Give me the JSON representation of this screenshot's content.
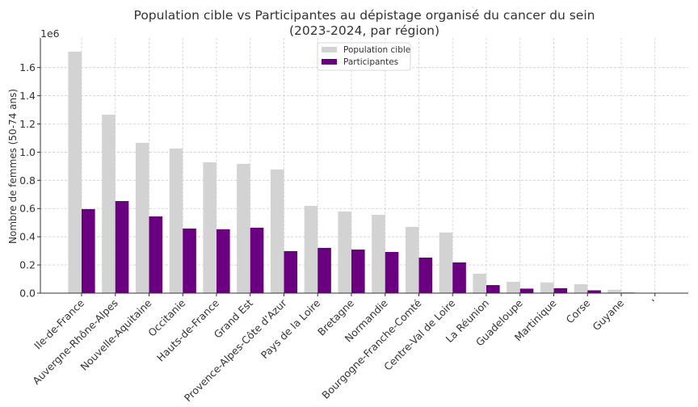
{
  "chart_data": {
    "type": "bar",
    "title": "Population cible vs Participantes au dépistage organisé du cancer du sein",
    "subtitle": "(2023-2024, par région)",
    "xlabel": "",
    "ylabel": "Nombre de femmes (50-74 ans)",
    "y_offset_label": "1e6",
    "y_scale": 1000000,
    "ylim": [
      0,
      1810000
    ],
    "yticks": [
      0,
      200000,
      400000,
      600000,
      800000,
      1000000,
      1200000,
      1400000,
      1600000
    ],
    "ytick_labels": [
      "0.0",
      "0.2",
      "0.4",
      "0.6",
      "0.8",
      "1.0",
      "1.2",
      "1.4",
      "1.6"
    ],
    "grid": true,
    "legend_position": "top-center",
    "categories": [
      "Ile-de-France",
      "Auvergne-Rhône-Alpes",
      "Nouvelle-Aquitaine",
      "Occitanie",
      "Hauts-de-France",
      "Grand Est",
      "Provence-Alpes-Côte d'Azur",
      "Pays de la Loire",
      "Bretagne",
      "Normandie",
      "Bourgogne-Franche-Comté",
      "Centre-Val de Loire",
      "La Réunion",
      "Guadeloupe",
      "Martinique",
      "Corse",
      "Guyane",
      "'"
    ],
    "series": [
      {
        "name": "Population cible",
        "color": "#d3d3d3",
        "values": [
          1713000,
          1266000,
          1066000,
          1026000,
          928000,
          917000,
          877000,
          619000,
          579000,
          556000,
          470000,
          430000,
          138000,
          80000,
          76000,
          63000,
          24000,
          0
        ]
      },
      {
        "name": "Participantes",
        "color": "#6a0080",
        "values": [
          596000,
          653000,
          544000,
          458000,
          453000,
          464000,
          298000,
          321000,
          309000,
          292000,
          252000,
          218000,
          57000,
          32000,
          35000,
          20000,
          4000,
          0
        ]
      }
    ]
  }
}
